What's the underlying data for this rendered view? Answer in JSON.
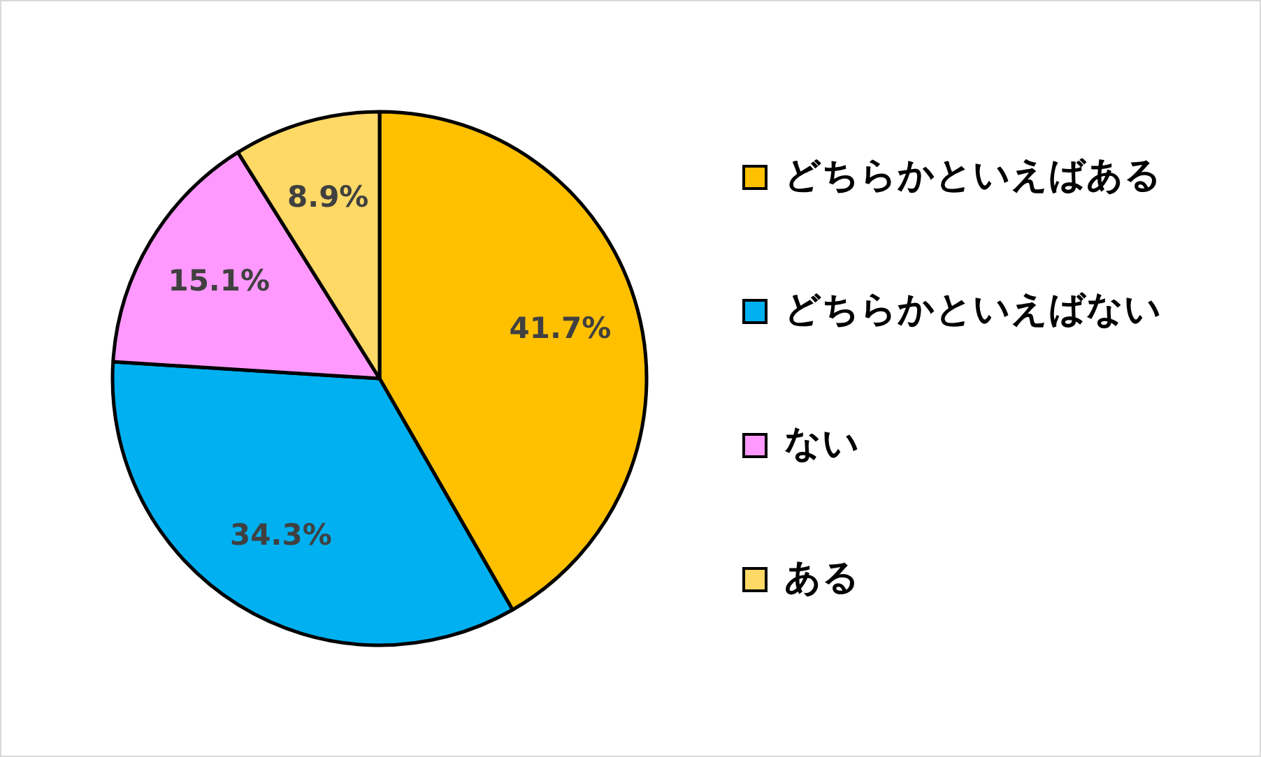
{
  "chart_data": {
    "type": "pie",
    "categories": [
      "どちらかといえばある",
      "どちらかといえばない",
      "ない",
      "ある"
    ],
    "values": [
      41.7,
      34.3,
      15.1,
      8.9
    ],
    "colors": [
      "#ffc000",
      "#00b0f0",
      "#ff99ff",
      "#ffd966"
    ],
    "value_labels": [
      "41.7%",
      "34.3%",
      "15.1%",
      "8.9%"
    ],
    "legend": "right"
  }
}
